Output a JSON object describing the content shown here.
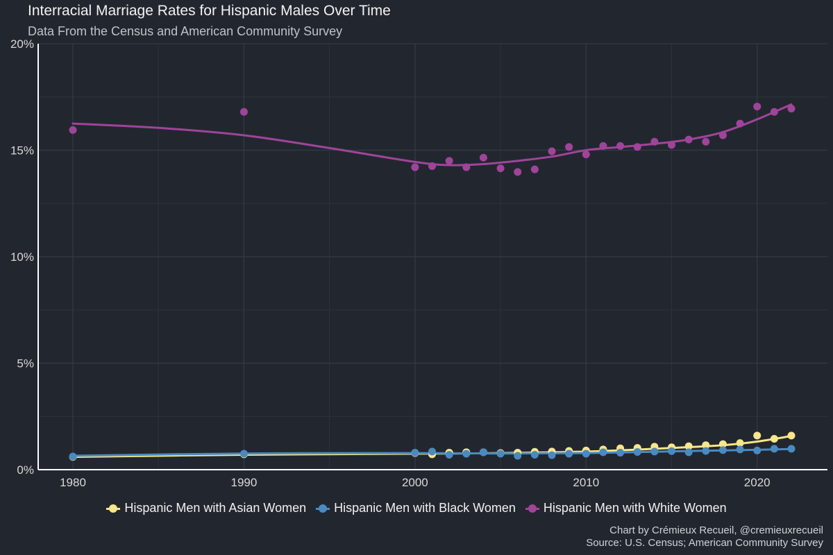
{
  "chart_data": {
    "type": "scatter",
    "title": "Interracial Marriage Rates for Hispanic Males Over Time",
    "subtitle": "Data From the Census and American Community Survey",
    "xlabel": "",
    "ylabel": "",
    "xlim": [
      1980,
      2022
    ],
    "ylim": [
      0,
      20
    ],
    "x_ticks": [
      1980,
      1990,
      2000,
      2010,
      2020
    ],
    "y_ticks": [
      0,
      5,
      10,
      15,
      20
    ],
    "y_tick_suffix": "%",
    "grid": true,
    "smoothed_trend_lines": true,
    "legend_position": "bottom",
    "series": [
      {
        "name": "Hispanic Men with Asian Women",
        "color": "#f8e68a",
        "x": [
          1980,
          1990,
          2000,
          2001,
          2002,
          2003,
          2004,
          2005,
          2006,
          2007,
          2008,
          2009,
          2010,
          2011,
          2012,
          2013,
          2014,
          2015,
          2016,
          2017,
          2018,
          2019,
          2020,
          2021,
          2022
        ],
        "y": [
          0.6,
          0.72,
          0.78,
          0.72,
          0.8,
          0.82,
          0.82,
          0.78,
          0.8,
          0.84,
          0.85,
          0.88,
          0.9,
          0.95,
          1.0,
          1.02,
          1.08,
          1.05,
          1.1,
          1.15,
          1.2,
          1.25,
          1.6,
          1.45,
          1.6
        ]
      },
      {
        "name": "Hispanic Men with Black Women",
        "color": "#4a8ac0",
        "x": [
          1980,
          1990,
          2000,
          2001,
          2002,
          2003,
          2004,
          2005,
          2006,
          2007,
          2008,
          2009,
          2010,
          2011,
          2012,
          2013,
          2014,
          2015,
          2016,
          2017,
          2018,
          2019,
          2020,
          2021,
          2022
        ],
        "y": [
          0.62,
          0.75,
          0.8,
          0.85,
          0.7,
          0.75,
          0.82,
          0.75,
          0.65,
          0.7,
          0.68,
          0.75,
          0.75,
          0.82,
          0.8,
          0.83,
          0.85,
          0.87,
          0.82,
          0.88,
          0.92,
          0.95,
          0.9,
          0.98,
          0.98
        ]
      },
      {
        "name": "Hispanic Men with White Women",
        "color": "#a0449a",
        "x": [
          1980,
          1990,
          2000,
          2001,
          2002,
          2003,
          2004,
          2005,
          2006,
          2007,
          2008,
          2009,
          2010,
          2011,
          2012,
          2013,
          2014,
          2015,
          2016,
          2017,
          2018,
          2019,
          2020,
          2021,
          2022
        ],
        "y": [
          15.95,
          16.8,
          14.2,
          14.25,
          14.5,
          14.2,
          14.65,
          14.15,
          13.98,
          14.1,
          14.95,
          15.15,
          14.8,
          15.2,
          15.2,
          15.15,
          15.4,
          15.25,
          15.5,
          15.4,
          15.7,
          16.25,
          17.05,
          16.8,
          16.95
        ]
      }
    ],
    "trend_lines": [
      {
        "series": "Hispanic Men with Asian Women",
        "x": [
          1980,
          1990,
          2000,
          2005,
          2010,
          2015,
          2018,
          2020,
          2022
        ],
        "y": [
          0.6,
          0.7,
          0.75,
          0.78,
          0.85,
          1.02,
          1.15,
          1.32,
          1.58
        ]
      },
      {
        "series": "Hispanic Men with Black Women",
        "x": [
          1980,
          1990,
          2000,
          2005,
          2010,
          2015,
          2020,
          2022
        ],
        "y": [
          0.65,
          0.76,
          0.78,
          0.76,
          0.78,
          0.86,
          0.93,
          0.97
        ]
      },
      {
        "series": "Hispanic Men with White Women",
        "x": [
          1980,
          1985,
          1990,
          1995,
          2000,
          2002,
          2004,
          2006,
          2008,
          2010,
          2012,
          2014,
          2016,
          2018,
          2020,
          2022
        ],
        "y": [
          16.25,
          16.05,
          15.7,
          15.1,
          14.45,
          14.3,
          14.35,
          14.5,
          14.7,
          15.0,
          15.15,
          15.3,
          15.5,
          15.85,
          16.45,
          17.15
        ]
      }
    ]
  },
  "caption": {
    "line1": "Chart by Crémieux Recueil, @cremieuxrecueil",
    "line2": "Source: U.S. Census; American Community Survey"
  }
}
